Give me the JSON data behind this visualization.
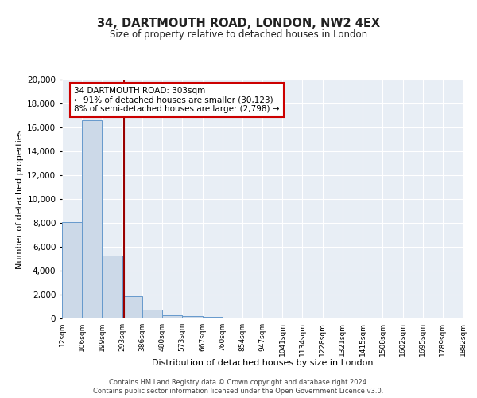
{
  "title": "34, DARTMOUTH ROAD, LONDON, NW2 4EX",
  "subtitle": "Size of property relative to detached houses in London",
  "xlabel": "Distribution of detached houses by size in London",
  "ylabel": "Number of detached properties",
  "property_label": "34 DARTMOUTH ROAD: 303sqm",
  "annotation_line1": "← 91% of detached houses are smaller (30,123)",
  "annotation_line2": "8% of semi-detached houses are larger (2,798) →",
  "bin_edges": [
    12,
    106,
    199,
    293,
    386,
    480,
    573,
    667,
    760,
    854,
    947,
    1041,
    1134,
    1228,
    1321,
    1415,
    1508,
    1602,
    1695,
    1789,
    1882
  ],
  "bin_counts": [
    8100,
    16600,
    5300,
    1850,
    750,
    300,
    200,
    150,
    100,
    100,
    0,
    0,
    0,
    0,
    0,
    0,
    0,
    0,
    0,
    0
  ],
  "bar_color": "#ccd9e8",
  "bar_edge_color": "#6699cc",
  "vline_color": "#990000",
  "vline_x": 303,
  "annotation_box_facecolor": "#ffffff",
  "annotation_box_edgecolor": "#cc0000",
  "ylim": [
    0,
    20000
  ],
  "yticks": [
    0,
    2000,
    4000,
    6000,
    8000,
    10000,
    12000,
    14000,
    16000,
    18000,
    20000
  ],
  "bg_color": "#e8eef5",
  "grid_color": "#ffffff",
  "fig_facecolor": "#ffffff",
  "footer_line1": "Contains HM Land Registry data © Crown copyright and database right 2024.",
  "footer_line2": "Contains public sector information licensed under the Open Government Licence v3.0."
}
